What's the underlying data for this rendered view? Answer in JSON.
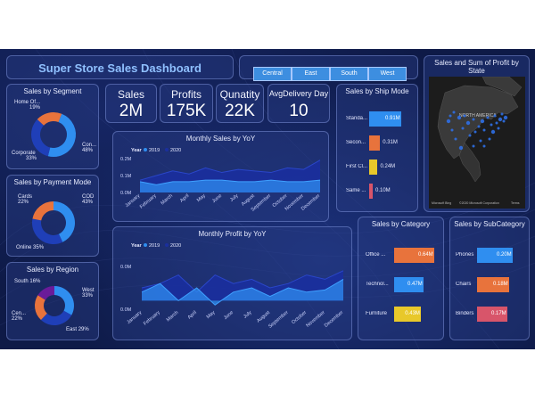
{
  "title": "Super Store Sales Dashboard",
  "slicers": [
    "Central",
    "East",
    "South",
    "West"
  ],
  "kpis": [
    {
      "label": "Sales",
      "value": "2M"
    },
    {
      "label": "Profits",
      "value": "175K"
    },
    {
      "label": "Qunatity",
      "value": "22K"
    },
    {
      "label": "AvgDelivery Day",
      "value": "10"
    }
  ],
  "segment": {
    "title": "Sales by Segment",
    "slices": [
      {
        "label": "Con...",
        "pct": "48%",
        "value": 48,
        "color": "#2f8ef0"
      },
      {
        "label": "Corporate",
        "pct": "33%",
        "value": 33,
        "color": "#1f3fb8"
      },
      {
        "label": "Home Of...",
        "pct": "19%",
        "value": 19,
        "color": "#e8733c"
      }
    ]
  },
  "payment": {
    "title": "Sales by Payment Mode",
    "slices": [
      {
        "label": "COD",
        "pct": "43%",
        "value": 43,
        "color": "#2f8ef0"
      },
      {
        "label": "Online",
        "pct": "35%",
        "value": 35,
        "color": "#1f3fb8"
      },
      {
        "label": "Cards",
        "pct": "22%",
        "value": 22,
        "color": "#e8733c"
      }
    ]
  },
  "region": {
    "title": "Sales by Region",
    "slices": [
      {
        "label": "West",
        "pct": "33%",
        "value": 33,
        "color": "#2f8ef0"
      },
      {
        "label": "East",
        "pct": "29%",
        "value": 29,
        "color": "#1f3fb8"
      },
      {
        "label": "Cen...",
        "pct": "22%",
        "value": 22,
        "color": "#e8733c"
      },
      {
        "label": "South",
        "pct": "16%",
        "value": 16,
        "color": "#6a1b9a"
      }
    ]
  },
  "chart_data": [
    {
      "type": "area",
      "title": "Monthly Sales by YoY",
      "legend_title": "Year",
      "legend": [
        "2019",
        "2020"
      ],
      "x": [
        "January",
        "February",
        "March",
        "April",
        "May",
        "June",
        "July",
        "August",
        "September",
        "October",
        "November",
        "December"
      ],
      "series": [
        {
          "name": "2019",
          "color": "#2f8ef0",
          "values": [
            0.07,
            0.05,
            0.07,
            0.07,
            0.08,
            0.08,
            0.07,
            0.07,
            0.08,
            0.07,
            0.07,
            0.08
          ]
        },
        {
          "name": "2020",
          "color": "#1a2f9e",
          "values": [
            0.08,
            0.11,
            0.14,
            0.12,
            0.16,
            0.13,
            0.15,
            0.14,
            0.13,
            0.16,
            0.15,
            0.21
          ]
        }
      ],
      "yticks": [
        "0.0M",
        "0.1M",
        "0.2M"
      ],
      "ylim": [
        0,
        0.22
      ]
    },
    {
      "type": "area",
      "title": "Monthly Profit by YoY",
      "legend_title": "Year",
      "legend": [
        "2019",
        "2020"
      ],
      "x": [
        "January",
        "February",
        "March",
        "April",
        "May",
        "June",
        "July",
        "August",
        "September",
        "October",
        "November",
        "December"
      ],
      "series": [
        {
          "name": "2019",
          "color": "#2f8ef0",
          "values": [
            0.004,
            0.008,
            0.0,
            0.006,
            -0.002,
            0.004,
            0.006,
            0.002,
            0.006,
            0.004,
            0.005,
            0.01
          ]
        },
        {
          "name": "2020",
          "color": "#1a2f9e",
          "values": [
            0.006,
            0.008,
            0.012,
            0.004,
            0.012,
            0.008,
            0.01,
            0.006,
            0.008,
            0.012,
            0.01,
            0.014
          ]
        }
      ],
      "yticks": [
        "0.0M",
        "0.0M"
      ],
      "ylim": [
        -0.004,
        0.016
      ]
    }
  ],
  "ship": {
    "title": "Sales by Ship Mode",
    "items": [
      {
        "label": "Standa...",
        "value": 0.91,
        "text": "0.91M",
        "color": "#2f8ef0"
      },
      {
        "label": "Secon...",
        "value": 0.31,
        "text": "0.31M",
        "color": "#e8733c"
      },
      {
        "label": "First Cl...",
        "value": 0.24,
        "text": "0.24M",
        "color": "#e8c82a"
      },
      {
        "label": "Same ...",
        "value": 0.1,
        "text": "0.10M",
        "color": "#d8556a"
      }
    ]
  },
  "map": {
    "title": "Sales and Sum of Profit by State",
    "region_label": "NORTH AMERICA",
    "credit": "©2020 Microsoft Corporation",
    "terms": "Terms",
    "brand": "Microsoft Bing"
  },
  "category": {
    "title": "Sales by Category",
    "items": [
      {
        "label": "Office ...",
        "value": 0.64,
        "text": "0.64M",
        "color": "#e8733c"
      },
      {
        "label": "Technol...",
        "value": 0.47,
        "text": "0.47M",
        "color": "#2f8ef0"
      },
      {
        "label": "Furniture",
        "value": 0.43,
        "text": "0.43M",
        "color": "#e8c82a"
      }
    ]
  },
  "subcategory": {
    "title": "Sales by SubCategory",
    "items": [
      {
        "label": "Phones",
        "value": 0.2,
        "text": "0.20M",
        "color": "#2f8ef0"
      },
      {
        "label": "Chairs",
        "value": 0.18,
        "text": "0.18M",
        "color": "#e8733c"
      },
      {
        "label": "Binders",
        "value": 0.17,
        "text": "0.17M",
        "color": "#d8556a"
      }
    ]
  }
}
